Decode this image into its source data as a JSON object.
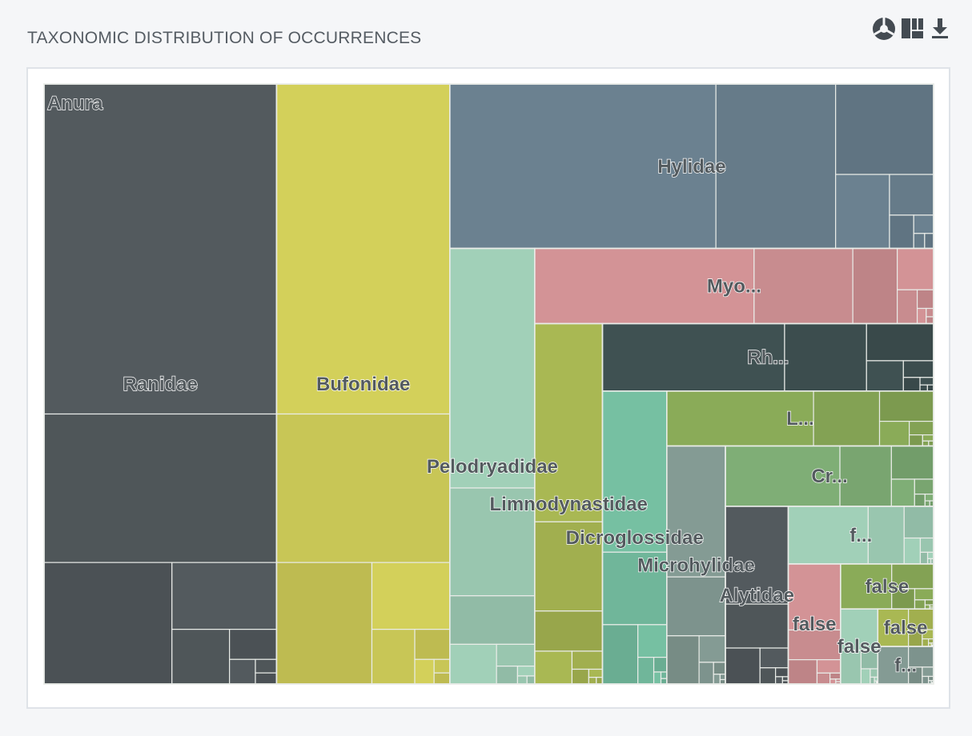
{
  "title": "TAXONOMIC DISTRIBUTION OF OCCURRENCES",
  "toolbar": [
    {
      "icon": "pie-chart-icon",
      "color": "#444b52"
    },
    {
      "icon": "treemap-icon",
      "color": "#444b52"
    },
    {
      "icon": "download-icon",
      "color": "#444b52"
    }
  ],
  "chart_data": {
    "type": "treemap",
    "root": "Anura",
    "value_note": "relative areas estimated from the rendered treemap",
    "families": [
      {
        "name": "Ranidae",
        "label": "Ranidae",
        "value": 20.0,
        "color": "#535a5e"
      },
      {
        "name": "Bufonidae",
        "label": "Bufonidae",
        "value": 14.9,
        "color": "#d3d05a"
      },
      {
        "name": "Hylidae",
        "label": "Hylidae",
        "value": 11.4,
        "color": "#6b8190"
      },
      {
        "name": "Pelodryadidae",
        "label": "Pelodryadidae",
        "value": 5.3,
        "color": "#a1d0b8"
      },
      {
        "name": "Myobatrachidae",
        "label": "Myo...",
        "value": 4.3,
        "color": "#d39396"
      },
      {
        "name": "Limnodynastidae",
        "label": "Limnodynastidae",
        "value": 3.5,
        "color": "#a9b853"
      },
      {
        "name": "Rhacophoridae",
        "label": "Rh...",
        "value": 3.2,
        "color": "#3f5152"
      },
      {
        "name": "Dicroglossidae",
        "label": "Dicroglossidae",
        "value": 2.7,
        "color": "#76c0a2"
      },
      {
        "name": "Leptodactylidae",
        "label": "L...",
        "value": 2.1,
        "color": "#8aab58"
      },
      {
        "name": "Microhylidae",
        "label": "Microhylidae",
        "value": 2.0,
        "color": "#849b94"
      },
      {
        "name": "Craugastoridae",
        "label": "Cr...",
        "value": 1.8,
        "color": "#7fae76"
      },
      {
        "name": "Alytidae",
        "label": "Alytidae",
        "value": 1.6,
        "color": "#535a5e"
      },
      {
        "name": "f-small-1",
        "label": "f...",
        "value": 1.2,
        "color": "#a1d0b8"
      },
      {
        "name": "false-1",
        "label": "false",
        "value": 0.9,
        "color": "#d39396"
      },
      {
        "name": "false-2",
        "label": "false",
        "value": 0.6,
        "color": "#8aab58"
      },
      {
        "name": "false-3",
        "label": "false",
        "value": 0.4,
        "color": "#a1d0b8"
      },
      {
        "name": "false-4",
        "label": "false",
        "value": 0.3,
        "color": "#a9b853"
      },
      {
        "name": "f-small-2",
        "label": "f...",
        "value": 0.3,
        "color": "#849b94"
      }
    ]
  }
}
